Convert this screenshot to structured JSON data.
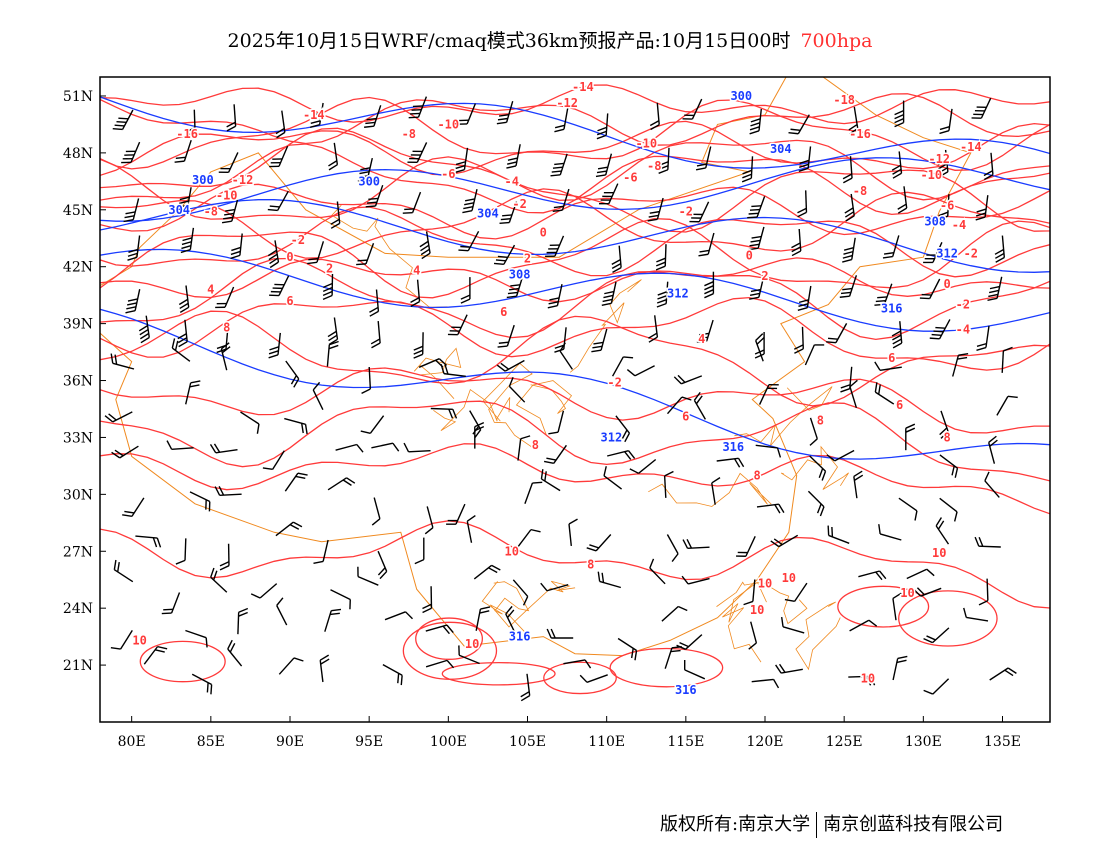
{
  "title": {
    "main": "2025年10月15日WRF/cmaq模式36km预报产品:10月15日00时",
    "level": "700hpa"
  },
  "footer": {
    "left": "版权所有:南京大学",
    "right": "南京创蓝科技有限公司"
  },
  "colors": {
    "temperature": "#ff3a3a",
    "height": "#1a3cff",
    "border": "#f08a20",
    "barb": "#000000"
  },
  "map": {
    "lon_range": [
      78,
      138
    ],
    "lat_range": [
      18,
      52
    ],
    "lon_ticks": [
      "80E",
      "85E",
      "90E",
      "95E",
      "100E",
      "105E",
      "110E",
      "115E",
      "120E",
      "125E",
      "130E",
      "135E"
    ],
    "lat_ticks": [
      "51N",
      "48N",
      "45N",
      "42N",
      "39N",
      "36N",
      "33N",
      "30N",
      "27N",
      "24N",
      "21N"
    ],
    "temperature_labels": [
      {
        "text": "-14",
        "lon": 108.5,
        "lat": 51.4
      },
      {
        "text": "-12",
        "lon": 107.5,
        "lat": 50.7
      },
      {
        "text": "-14",
        "lon": 91.5,
        "lat": 50
      },
      {
        "text": "-16",
        "lon": 83.5,
        "lat": 49
      },
      {
        "text": "-10",
        "lon": 100,
        "lat": 49.5
      },
      {
        "text": "-8",
        "lon": 97.5,
        "lat": 49
      },
      {
        "text": "-12",
        "lon": 87,
        "lat": 46.5
      },
      {
        "text": "-10",
        "lon": 86,
        "lat": 45.8
      },
      {
        "text": "-8",
        "lon": 85,
        "lat": 45
      },
      {
        "text": "-6",
        "lon": 100,
        "lat": 46.9
      },
      {
        "text": "-4",
        "lon": 104,
        "lat": 46.5
      },
      {
        "text": "-6",
        "lon": 111.5,
        "lat": 46.7
      },
      {
        "text": "-8",
        "lon": 113,
        "lat": 47.3
      },
      {
        "text": "-10",
        "lon": 112.5,
        "lat": 48.5
      },
      {
        "text": "-18",
        "lon": 125,
        "lat": 50.8
      },
      {
        "text": "-16",
        "lon": 126,
        "lat": 49
      },
      {
        "text": "-14",
        "lon": 133,
        "lat": 48.3
      },
      {
        "text": "-12",
        "lon": 131,
        "lat": 47.6
      },
      {
        "text": "-10",
        "lon": 130.5,
        "lat": 46.9
      },
      {
        "text": "-8",
        "lon": 126,
        "lat": 46
      },
      {
        "text": "-6",
        "lon": 131.5,
        "lat": 45
      },
      {
        "text": "-4",
        "lon": 132,
        "lat": 44.2
      },
      {
        "text": "-2",
        "lon": 104.5,
        "lat": 45.3
      },
      {
        "text": "-2",
        "lon": 115,
        "lat": 44.9
      },
      {
        "text": "-2",
        "lon": 90.5,
        "lat": 43.4
      },
      {
        "text": "0",
        "lon": 90,
        "lat": 42.5
      },
      {
        "text": "0",
        "lon": 106,
        "lat": 43.8
      },
      {
        "text": "0",
        "lon": 119,
        "lat": 42.6
      },
      {
        "text": "-2",
        "lon": 132.5,
        "lat": 42.7
      },
      {
        "text": "2",
        "lon": 92.5,
        "lat": 41.9
      },
      {
        "text": "2",
        "lon": 105,
        "lat": 42.3
      },
      {
        "text": "2",
        "lon": 120,
        "lat": 41.5
      },
      {
        "text": "0",
        "lon": 131.5,
        "lat": 41.1
      },
      {
        "text": "4",
        "lon": 85,
        "lat": 40.8
      },
      {
        "text": "4",
        "lon": 98,
        "lat": 41.8
      },
      {
        "text": "-2",
        "lon": 132.5,
        "lat": 40
      },
      {
        "text": "6",
        "lon": 90,
        "lat": 40.2
      },
      {
        "text": "6",
        "lon": 103.5,
        "lat": 39.6
      },
      {
        "text": "-4",
        "lon": 132.5,
        "lat": 38.7
      },
      {
        "text": "8",
        "lon": 86,
        "lat": 38.8
      },
      {
        "text": "4",
        "lon": 116,
        "lat": 38.2
      },
      {
        "text": "6",
        "lon": 128,
        "lat": 37.2
      },
      {
        "text": "-2",
        "lon": 110.5,
        "lat": 35.9
      },
      {
        "text": "6",
        "lon": 128.5,
        "lat": 34.7
      },
      {
        "text": "8",
        "lon": 123.5,
        "lat": 33.9
      },
      {
        "text": "6",
        "lon": 115,
        "lat": 34.1
      },
      {
        "text": "8",
        "lon": 131.5,
        "lat": 33
      },
      {
        "text": "8",
        "lon": 105.5,
        "lat": 32.6
      },
      {
        "text": "8",
        "lon": 119.5,
        "lat": 31
      },
      {
        "text": "10",
        "lon": 104,
        "lat": 27
      },
      {
        "text": "8",
        "lon": 109,
        "lat": 26.3
      },
      {
        "text": "10",
        "lon": 120,
        "lat": 25.3
      },
      {
        "text": "10",
        "lon": 121.5,
        "lat": 25.6
      },
      {
        "text": "10",
        "lon": 119.5,
        "lat": 23.9
      },
      {
        "text": "10",
        "lon": 129,
        "lat": 24.8
      },
      {
        "text": "10",
        "lon": 131,
        "lat": 26.9
      },
      {
        "text": "10",
        "lon": 80.5,
        "lat": 22.3
      },
      {
        "text": "10",
        "lon": 101.5,
        "lat": 22.1
      },
      {
        "text": "10",
        "lon": 126.5,
        "lat": 20.3
      }
    ],
    "height_labels": [
      {
        "text": "300",
        "lon": 118.5,
        "lat": 51
      },
      {
        "text": "304",
        "lon": 121,
        "lat": 48.2
      },
      {
        "text": "300",
        "lon": 84.5,
        "lat": 46.5
      },
      {
        "text": "300",
        "lon": 95,
        "lat": 46.5
      },
      {
        "text": "304",
        "lon": 102.5,
        "lat": 44.8
      },
      {
        "text": "304",
        "lon": 83,
        "lat": 45
      },
      {
        "text": "308",
        "lon": 104.5,
        "lat": 41.7
      },
      {
        "text": "312",
        "lon": 114.5,
        "lat": 40.6
      },
      {
        "text": "316",
        "lon": 128,
        "lat": 39.8
      },
      {
        "text": "308",
        "lon": 131,
        "lat": 44.6
      },
      {
        "text": "312",
        "lon": 132,
        "lat": 42.7
      },
      {
        "text": "312",
        "lon": 110.3,
        "lat": 33
      },
      {
        "text": "316",
        "lon": 118,
        "lat": 32.5
      },
      {
        "text": "316",
        "lon": 104.5,
        "lat": 22.5
      },
      {
        "text": "316",
        "lon": 115,
        "lat": 19.7
      }
    ]
  }
}
